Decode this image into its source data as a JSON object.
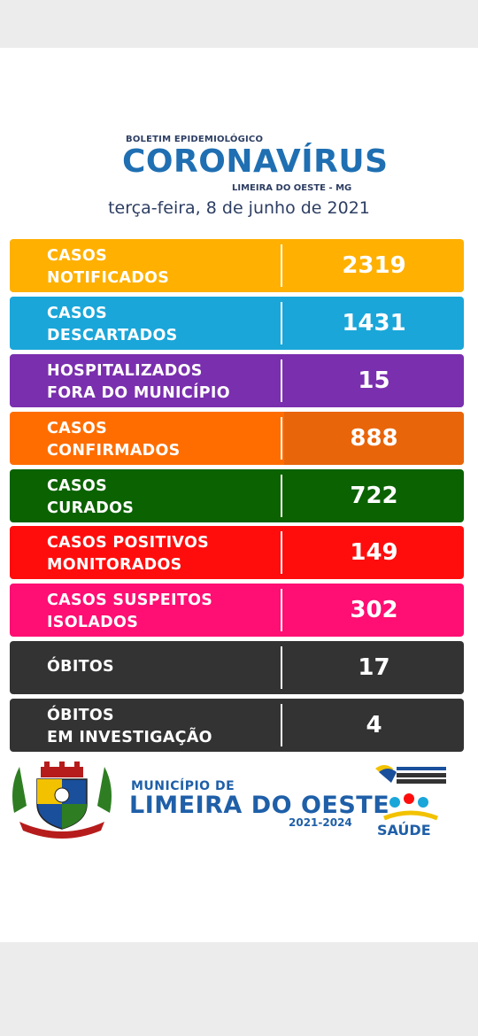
{
  "header": {
    "pre_title": "BOLETIM EPIDEMIOLÓGICO",
    "title": "CORONAVÍRUS",
    "place": "LIMEIRA DO OESTE - MG",
    "date": "terça-feira, 8 de junho de 2021"
  },
  "rows": [
    {
      "line1": "CASOS",
      "line2": "NOTIFICADOS",
      "value": "2319",
      "color": "#ffb000"
    },
    {
      "line1": "CASOS",
      "line2": "DESCARTADOS",
      "value": "1431",
      "color": "#1aa6d9"
    },
    {
      "line1": "HOSPITALIZADOS",
      "line2": "FORA DO MUNICÍPIO",
      "value": "15",
      "color": "#7a2fae"
    },
    {
      "line1": "CASOS",
      "line2": "CONFIRMADOS",
      "value": "888",
      "color": "#ff6d00",
      "value_color": "#e8650a"
    },
    {
      "line1": "CASOS",
      "line2": "CURADOS",
      "value": "722",
      "color": "#0a6200"
    },
    {
      "line1": "CASOS POSITIVOS",
      "line2": "MONITORADOS",
      "value": "149",
      "color": "#ff0d0d"
    },
    {
      "line1": "CASOS SUSPEITOS",
      "line2": "ISOLADOS",
      "value": "302",
      "color": "#ff0e73"
    },
    {
      "line1": "ÓBITOS",
      "line2": "",
      "value": "17",
      "color": "#333333"
    },
    {
      "line1": "ÓBITOS",
      "line2": "EM INVESTIGAÇÃO",
      "value": "4",
      "color": "#333333"
    }
  ],
  "footer": {
    "municipio_small": "MUNICÍPIO DE",
    "municipio_big": "LIMEIRA DO OESTE",
    "term": "2021-2024",
    "saude": "SAÚDE",
    "coat_text": "LIMEIRA DO OESTE"
  }
}
